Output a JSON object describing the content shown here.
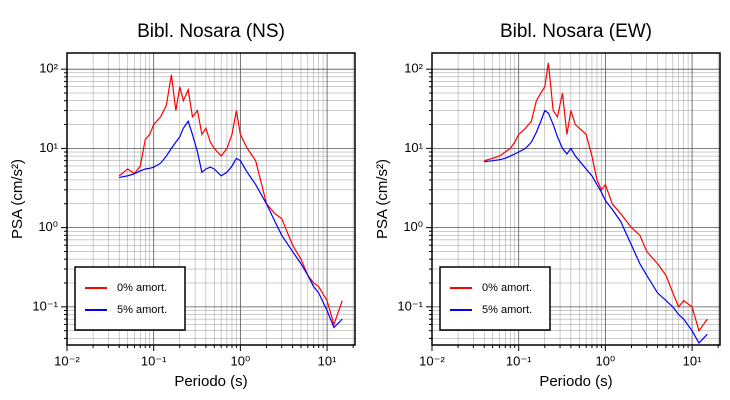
{
  "chart_data": [
    {
      "type": "line",
      "title": "Bibl. Nosara (NS)",
      "x_label": "Periodo (s)",
      "y_label": "PSA (cm/s²)",
      "log_x": true,
      "log_y": true,
      "grid": true,
      "legend": "lower-left",
      "xlim": [
        0.01,
        21
      ],
      "ylim": [
        0.033,
        160
      ],
      "xticks": [
        {
          "value": 0.01,
          "label": "10⁻²"
        },
        {
          "value": 0.1,
          "label": "10⁻¹"
        },
        {
          "value": 1,
          "label": "10⁰"
        },
        {
          "value": 10,
          "label": "10¹"
        }
      ],
      "yticks": [
        {
          "value": 0.1,
          "label": "10⁻¹"
        },
        {
          "value": 1,
          "label": "10⁰"
        },
        {
          "value": 10,
          "label": "10¹"
        },
        {
          "value": 100,
          "label": "10²"
        }
      ],
      "xminor": [
        0.02,
        0.03,
        0.04,
        0.05,
        0.06,
        0.07,
        0.08,
        0.09,
        0.2,
        0.3,
        0.4,
        0.5,
        0.6,
        0.7,
        0.8,
        0.9,
        2,
        3,
        4,
        5,
        6,
        7,
        8,
        9,
        20
      ],
      "yminor": [
        0.04,
        0.05,
        0.06,
        0.07,
        0.08,
        0.09,
        0.2,
        0.3,
        0.4,
        0.5,
        0.6,
        0.7,
        0.8,
        0.9,
        2,
        3,
        4,
        5,
        6,
        7,
        8,
        9,
        20,
        30,
        40,
        50,
        60,
        70,
        80,
        90
      ],
      "x": [
        0.04,
        0.05,
        0.06,
        0.07,
        0.08,
        0.09,
        0.1,
        0.12,
        0.14,
        0.16,
        0.18,
        0.2,
        0.22,
        0.25,
        0.28,
        0.32,
        0.36,
        0.4,
        0.45,
        0.5,
        0.6,
        0.7,
        0.8,
        0.9,
        1,
        1.2,
        1.5,
        2,
        2.5,
        3,
        4,
        5,
        6,
        7,
        8,
        10,
        12,
        15
      ],
      "series": [
        {
          "name": "0% amort.",
          "color": "#ff0000",
          "values": [
            4.5,
            5.5,
            4.8,
            6,
            13,
            15,
            20,
            25,
            35,
            85,
            30,
            60,
            40,
            55,
            25,
            30,
            15,
            18,
            12,
            10,
            8,
            10,
            15,
            30,
            15,
            10,
            7,
            2,
            1.5,
            1.3,
            0.6,
            0.4,
            0.25,
            0.2,
            0.18,
            0.12,
            0.06,
            0.12
          ]
        },
        {
          "name": "5% amort.",
          "color": "#0000ff",
          "values": [
            4.3,
            4.5,
            4.8,
            5.2,
            5.5,
            5.6,
            5.8,
            6.5,
            8,
            10,
            12,
            14,
            18,
            22,
            15,
            9,
            5,
            5.5,
            5.8,
            5.5,
            4.5,
            5,
            6,
            7.5,
            7,
            5,
            3.5,
            2,
            1.2,
            0.8,
            0.5,
            0.35,
            0.25,
            0.18,
            0.15,
            0.09,
            0.055,
            0.07
          ]
        }
      ]
    },
    {
      "type": "line",
      "title": "Bibl. Nosara (EW)",
      "x_label": "Periodo (s)",
      "y_label": "PSA (cm/s²)",
      "log_x": true,
      "log_y": true,
      "grid": true,
      "legend": "lower-left",
      "xlim": [
        0.01,
        21
      ],
      "ylim": [
        0.033,
        160
      ],
      "xticks": [
        {
          "value": 0.01,
          "label": "10⁻²"
        },
        {
          "value": 0.1,
          "label": "10⁻¹"
        },
        {
          "value": 1,
          "label": "10⁰"
        },
        {
          "value": 10,
          "label": "10¹"
        }
      ],
      "yticks": [
        {
          "value": 0.1,
          "label": "10⁻¹"
        },
        {
          "value": 1,
          "label": "10⁰"
        },
        {
          "value": 10,
          "label": "10¹"
        },
        {
          "value": 100,
          "label": "10²"
        }
      ],
      "xminor": [
        0.02,
        0.03,
        0.04,
        0.05,
        0.06,
        0.07,
        0.08,
        0.09,
        0.2,
        0.3,
        0.4,
        0.5,
        0.6,
        0.7,
        0.8,
        0.9,
        2,
        3,
        4,
        5,
        6,
        7,
        8,
        9,
        20
      ],
      "yminor": [
        0.04,
        0.05,
        0.06,
        0.07,
        0.08,
        0.09,
        0.2,
        0.3,
        0.4,
        0.5,
        0.6,
        0.7,
        0.8,
        0.9,
        2,
        3,
        4,
        5,
        6,
        7,
        8,
        9,
        20,
        30,
        40,
        50,
        60,
        70,
        80,
        90
      ],
      "x": [
        0.04,
        0.05,
        0.06,
        0.07,
        0.08,
        0.09,
        0.1,
        0.12,
        0.14,
        0.16,
        0.18,
        0.2,
        0.22,
        0.25,
        0.28,
        0.32,
        0.36,
        0.4,
        0.45,
        0.5,
        0.6,
        0.7,
        0.8,
        0.9,
        1,
        1.2,
        1.5,
        2,
        2.5,
        3,
        4,
        5,
        6,
        7,
        8,
        10,
        12,
        15
      ],
      "series": [
        {
          "name": "0% amort.",
          "color": "#ff0000",
          "values": [
            7,
            7.5,
            8,
            9,
            10,
            12,
            15,
            18,
            22,
            40,
            50,
            60,
            120,
            30,
            25,
            50,
            15,
            30,
            20,
            18,
            15,
            8,
            4,
            3,
            3.5,
            2,
            1.5,
            1,
            0.8,
            0.5,
            0.35,
            0.25,
            0.15,
            0.1,
            0.12,
            0.1,
            0.05,
            0.07
          ]
        },
        {
          "name": "5% amort.",
          "color": "#0000ff",
          "values": [
            6.8,
            7,
            7.2,
            7.5,
            8,
            8.5,
            9,
            10,
            12,
            16,
            22,
            30,
            28,
            20,
            14,
            10,
            8.5,
            10,
            8,
            7,
            5.5,
            4.5,
            3.5,
            2.8,
            2.2,
            1.7,
            1.2,
            0.6,
            0.35,
            0.25,
            0.15,
            0.12,
            0.1,
            0.08,
            0.07,
            0.05,
            0.035,
            0.045
          ]
        }
      ]
    }
  ]
}
